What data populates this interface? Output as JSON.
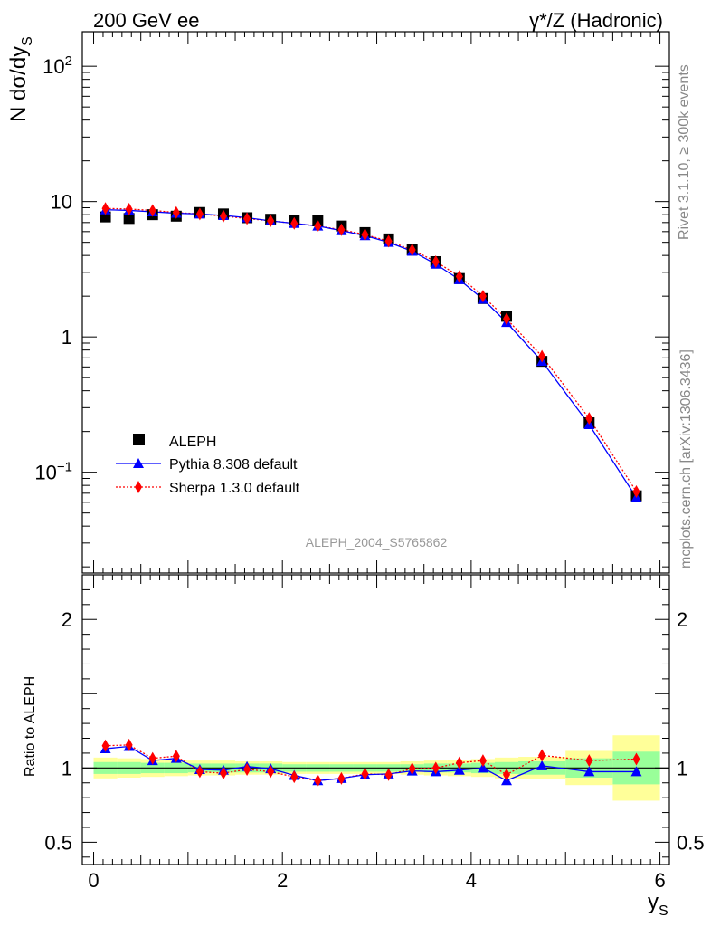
{
  "header": {
    "left": "200 GeV ee",
    "right": "γ*/Z (Hadronic)"
  },
  "side_text": {
    "rivet": "Rivet 3.1.10, ≥ 300k events",
    "mcplots": "mcplots.cern.ch [arXiv:1306.3436]"
  },
  "colors": {
    "data": "#000000",
    "pythia": "#0000ff",
    "sherpa": "#ff0000",
    "band_inner": "#99ff99",
    "band_outer": "#ffff99"
  },
  "chart_data": [
    {
      "type": "scatter",
      "scale": "log",
      "analysis_label": "ALEPH_2004_S5765862",
      "ylabel_main": "N dσ/dy",
      "ylabel_sub": "S",
      "xlabel_main": "y",
      "xlabel_sub": "S",
      "xlim": [
        -0.12,
        6.1
      ],
      "ylim": [
        0.018,
        180
      ],
      "ytick_labels": [
        {
          "value": 100,
          "base": "10",
          "exp": "2"
        },
        {
          "value": 10,
          "base": "10",
          "exp": ""
        },
        {
          "value": 1,
          "base": "1",
          "exp": ""
        },
        {
          "value": 0.1,
          "base": "10",
          "exp": "−1"
        }
      ],
      "legend": [
        {
          "id": "aleph",
          "label": "ALEPH"
        },
        {
          "id": "pythia",
          "label": "Pythia 8.308 default"
        },
        {
          "id": "sherpa",
          "label": "Sherpa 1.3.0 default"
        }
      ],
      "x": [
        0.125,
        0.375,
        0.625,
        0.875,
        1.125,
        1.375,
        1.625,
        1.875,
        2.125,
        2.375,
        2.625,
        2.875,
        3.125,
        3.375,
        3.625,
        3.875,
        4.125,
        4.375,
        4.75,
        5.25,
        5.75
      ],
      "series": [
        {
          "name": "ALEPH",
          "values": [
            7.7,
            7.5,
            8.0,
            7.8,
            8.3,
            8.1,
            7.6,
            7.4,
            7.3,
            7.2,
            6.6,
            5.9,
            5.3,
            4.4,
            3.6,
            2.7,
            1.92,
            1.42,
            0.66,
            0.232,
            0.067
          ]
        },
        {
          "name": "Pythia 8.308 default",
          "values": [
            8.7,
            8.6,
            8.4,
            8.2,
            8.1,
            7.9,
            7.6,
            7.2,
            6.9,
            6.6,
            6.1,
            5.6,
            5.0,
            4.3,
            3.45,
            2.65,
            1.9,
            1.28,
            0.66,
            0.225,
            0.065
          ]
        },
        {
          "name": "Sherpa 1.3.0 default",
          "values": [
            8.9,
            8.8,
            8.6,
            8.3,
            8.1,
            7.8,
            7.5,
            7.2,
            6.9,
            6.6,
            6.2,
            5.7,
            5.1,
            4.4,
            3.6,
            2.8,
            2.0,
            1.36,
            0.72,
            0.25,
            0.072
          ]
        }
      ]
    },
    {
      "type": "scatter",
      "scale": "linear",
      "ylabel": "Ratio to ALEPH",
      "xlim": [
        -0.12,
        6.1
      ],
      "ylim": [
        0.35,
        2.3
      ],
      "ytick_labels": [
        {
          "value": 2,
          "label": "2"
        },
        {
          "value": 1,
          "label": "1"
        },
        {
          "value": 0.5,
          "label": "0.5"
        }
      ],
      "xtick_labels": [
        {
          "value": 0,
          "label": "0"
        },
        {
          "value": 2,
          "label": "2"
        },
        {
          "value": 4,
          "label": "4"
        },
        {
          "value": 6,
          "label": "6"
        }
      ],
      "bins": [
        [
          0,
          0.25
        ],
        [
          0.25,
          0.5
        ],
        [
          0.5,
          0.75
        ],
        [
          0.75,
          1.0
        ],
        [
          1.0,
          1.25
        ],
        [
          1.25,
          1.5
        ],
        [
          1.5,
          1.75
        ],
        [
          1.75,
          2.0
        ],
        [
          2.0,
          2.25
        ],
        [
          2.25,
          2.5
        ],
        [
          2.5,
          2.75
        ],
        [
          2.75,
          3.0
        ],
        [
          3.0,
          3.25
        ],
        [
          3.25,
          3.5
        ],
        [
          3.5,
          3.75
        ],
        [
          3.75,
          4.0
        ],
        [
          4.0,
          4.25
        ],
        [
          4.25,
          4.5
        ],
        [
          4.5,
          5.0
        ],
        [
          5.0,
          5.5
        ],
        [
          5.5,
          6.0
        ]
      ],
      "band_inner_halfwidth": [
        0.04,
        0.04,
        0.035,
        0.035,
        0.03,
        0.03,
        0.03,
        0.03,
        0.025,
        0.025,
        0.025,
        0.025,
        0.025,
        0.025,
        0.03,
        0.03,
        0.035,
        0.04,
        0.045,
        0.065,
        0.11
      ],
      "band_outer_halfwidth": [
        0.07,
        0.065,
        0.06,
        0.055,
        0.05,
        0.05,
        0.045,
        0.045,
        0.04,
        0.04,
        0.04,
        0.04,
        0.04,
        0.045,
        0.05,
        0.055,
        0.06,
        0.07,
        0.075,
        0.115,
        0.22
      ],
      "x": [
        0.125,
        0.375,
        0.625,
        0.875,
        1.125,
        1.375,
        1.625,
        1.875,
        2.125,
        2.375,
        2.625,
        2.875,
        3.125,
        3.375,
        3.625,
        3.875,
        4.125,
        4.375,
        4.75,
        5.25,
        5.75
      ],
      "series": [
        {
          "name": "Pythia 8.308 default",
          "values": [
            1.13,
            1.145,
            1.05,
            1.065,
            0.99,
            0.985,
            1.01,
            0.995,
            0.95,
            0.915,
            0.93,
            0.955,
            0.96,
            0.98,
            0.975,
            0.985,
            1.0,
            0.915,
            1.015,
            0.975,
            0.975
          ]
        },
        {
          "name": "Sherpa 1.3.0 default",
          "values": [
            1.15,
            1.155,
            1.065,
            1.08,
            0.975,
            0.965,
            0.99,
            0.975,
            0.94,
            0.915,
            0.93,
            0.96,
            0.955,
            0.995,
            1.0,
            1.035,
            1.05,
            0.955,
            1.085,
            1.05,
            1.06
          ]
        }
      ]
    }
  ]
}
